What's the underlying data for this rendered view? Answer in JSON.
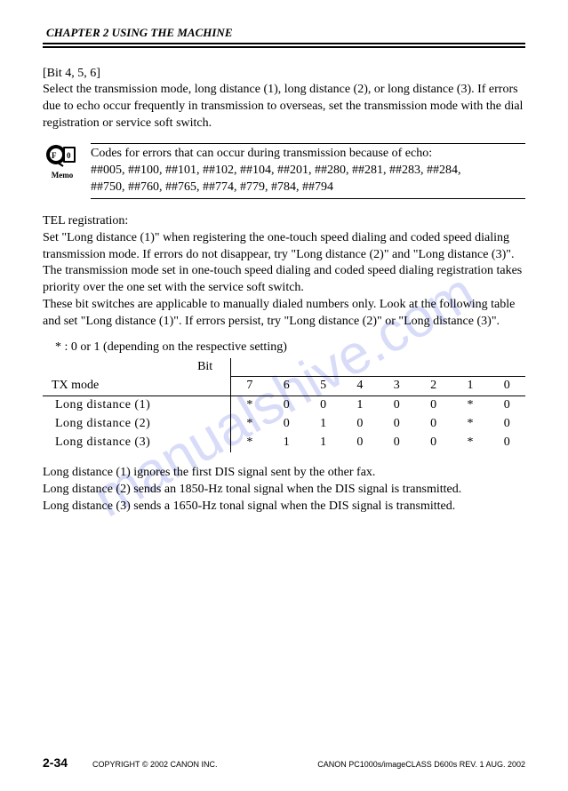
{
  "header": {
    "chapter": "CHAPTER 2 USING THE MACHINE"
  },
  "bit_label": "[Bit 4, 5, 6]",
  "para1": "Select the transmission mode, long distance (1), long distance (2), or long distance (3). If errors due to echo occur frequently in transmission to overseas, set the transmission mode with the dial registration or service soft switch.",
  "memo": {
    "label": "Memo",
    "line1": "Codes for errors that can occur during transmission because of echo:",
    "line2": "##005, ##100, ##101, ##102, ##104, ##201, ##280, ##281, ##283, ##284,",
    "line3": "##750, ##760, ##765, ##774, #779, #784, ##794"
  },
  "tel_heading": "TEL registration:",
  "tel_p1": "Set \"Long distance (1)\" when registering the one-touch speed dialing and coded speed dialing transmission mode. If errors do not disappear, try \"Long distance (2)\" and \"Long distance (3)\".",
  "tel_p2": "The transmission mode set in one-touch speed dialing and coded speed dialing registration takes priority over the one set with the service soft switch.",
  "tel_p3": "These bit switches are applicable to manually dialed numbers only. Look at the following table and set \"Long distance (1)\". If errors persist, try \"Long distance (2)\" or \"Long distance (3)\".",
  "table": {
    "note": "* : 0 or 1 (depending on the respective setting)",
    "bit_label": "Bit",
    "tx_label": "TX mode",
    "cols": [
      "7",
      "6",
      "5",
      "4",
      "3",
      "2",
      "1",
      "0"
    ],
    "rows": [
      {
        "label": "Long distance (1)",
        "vals": [
          "*",
          "0",
          "0",
          "1",
          "0",
          "0",
          "*",
          "0"
        ]
      },
      {
        "label": "Long distance (2)",
        "vals": [
          "*",
          "0",
          "1",
          "0",
          "0",
          "0",
          "*",
          "0"
        ]
      },
      {
        "label": "Long distance (3)",
        "vals": [
          "*",
          "1",
          "1",
          "0",
          "0",
          "0",
          "*",
          "0"
        ]
      }
    ]
  },
  "ld1": "Long distance (1) ignores the first DIS signal sent by the other fax.",
  "ld2": "Long distance (2) sends an 1850-Hz tonal signal when the DIS signal is transmitted.",
  "ld3": "Long distance (3) sends a 1650-Hz tonal signal when the DIS signal is transmitted.",
  "footer": {
    "page": "2-34",
    "copyright": "COPYRIGHT © 2002 CANON INC.",
    "revision": "CANON PC1000s/imageCLASS D600s REV. 1 AUG. 2002"
  },
  "watermark": "manualshive.com"
}
